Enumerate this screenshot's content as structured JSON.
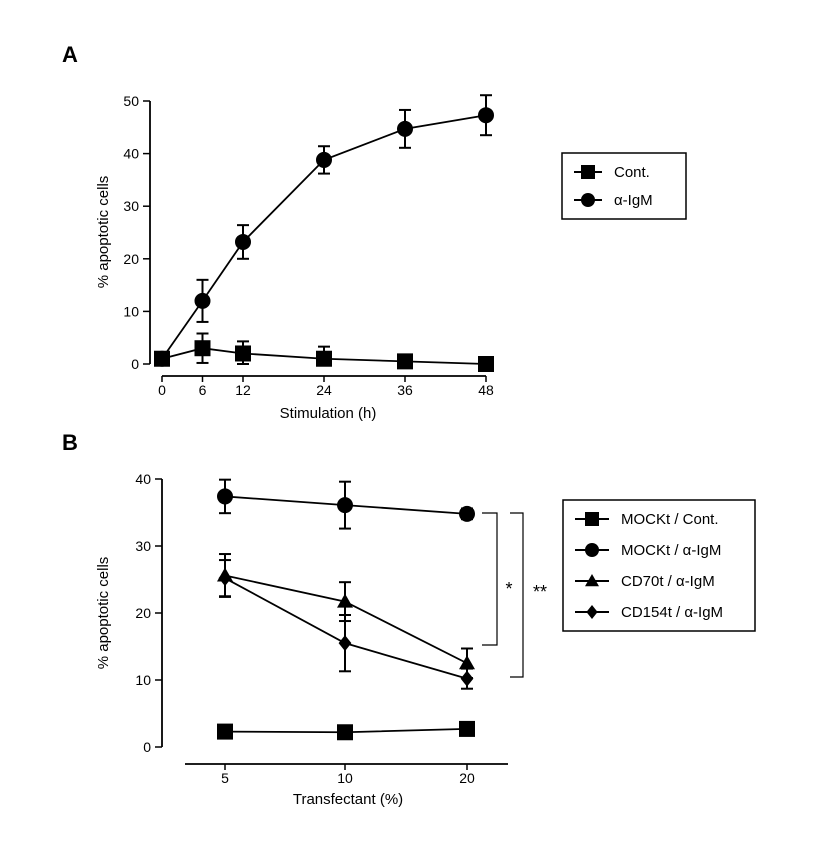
{
  "chart_data": [
    {
      "panel": "A",
      "type": "line",
      "title": "",
      "xlabel": "Stimulation (h)",
      "ylabel": "% apoptotic cells",
      "x": [
        0,
        6,
        12,
        24,
        36,
        48
      ],
      "xticks": [
        "0",
        "6",
        "12",
        "24",
        "36",
        "48"
      ],
      "yticks": [
        "0",
        "10",
        "20",
        "30",
        "40",
        "50"
      ],
      "xlim": [
        0,
        48
      ],
      "ylim": [
        0,
        50
      ],
      "legend_position": "right",
      "series": [
        {
          "name": "Cont.",
          "marker": "square",
          "values": [
            1,
            3,
            2,
            1,
            0.5,
            0
          ],
          "errors": [
            0,
            2.8,
            2.3,
            2.3,
            1.2,
            1.2
          ]
        },
        {
          "name": "α-IgM",
          "marker": "circle",
          "values": [
            1,
            12,
            23.2,
            38.8,
            44.7,
            47.3
          ],
          "errors": [
            0,
            4,
            3.2,
            2.6,
            3.6,
            3.8
          ]
        }
      ]
    },
    {
      "panel": "B",
      "type": "line",
      "title": "",
      "xlabel": "Transfectant (%)",
      "ylabel": "% apoptotic cells",
      "categories": [
        "5",
        "10",
        "20"
      ],
      "yticks": [
        "0",
        "10",
        "20",
        "30",
        "40"
      ],
      "ylim": [
        0,
        40
      ],
      "legend_position": "right",
      "series": [
        {
          "name": "MOCKt / Cont.",
          "marker": "square",
          "values": [
            2.3,
            2.2,
            2.7
          ],
          "errors": [
            0,
            0,
            0
          ]
        },
        {
          "name": "MOCKt / α-IgM",
          "marker": "circle",
          "values": [
            37.4,
            36.1,
            34.8
          ],
          "errors": [
            2.5,
            3.5,
            0.8
          ]
        },
        {
          "name": "CD70t  / α-IgM",
          "marker": "triangle",
          "values": [
            25.6,
            21.7,
            12.5
          ],
          "errors": [
            3.2,
            2.9,
            2.2
          ]
        },
        {
          "name": "CD154t / α-IgM",
          "marker": "diamond",
          "values": [
            25.2,
            15.5,
            10.2
          ],
          "errors": [
            2.7,
            4.2,
            1.5
          ]
        }
      ],
      "significance": [
        "*",
        "**"
      ]
    }
  ]
}
